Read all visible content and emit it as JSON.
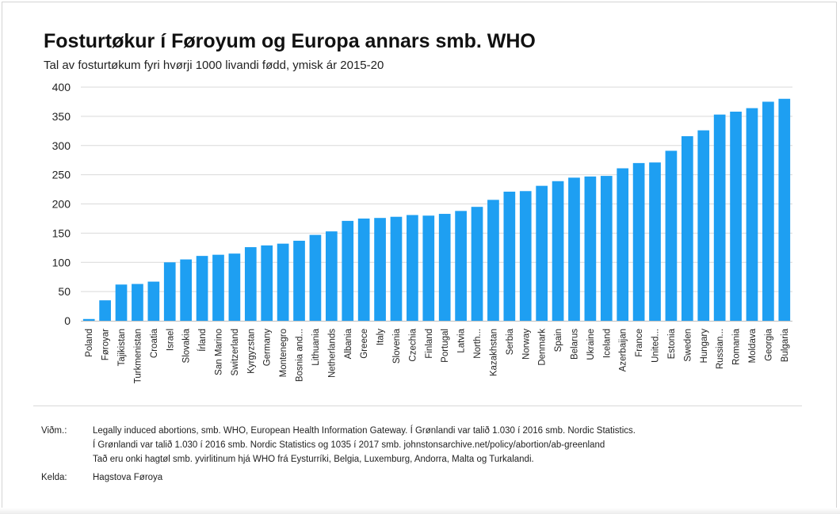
{
  "title": "Fosturtøkur í Føroyum og Europa annars smb. WHO",
  "subtitle": "Tal av fosturtøkum fyri hvørji 1000 livandi fødd, ymisk ár 2015-20",
  "colors": {
    "bar": "#1e9ff2",
    "grid": "#d9d9d9",
    "axis": "#bfbfbf",
    "text": "#222222"
  },
  "chart_data": {
    "type": "bar",
    "title": "Fosturtøkur í Føroyum og Europa annars smb. WHO",
    "subtitle": "Tal av fosturtøkum fyri hvørji 1000 livandi fødd, ymisk ár 2015-20",
    "xlabel": "",
    "ylabel": "",
    "ylim": [
      0,
      400
    ],
    "yticks": [
      0,
      50,
      100,
      150,
      200,
      250,
      300,
      350,
      400
    ],
    "grid": true,
    "legend": "none",
    "categories": [
      "Poland",
      "Føroyar",
      "Tajikistan",
      "Turkmenistan",
      "Croatia",
      "Israel",
      "Slovakia",
      "Írland",
      "San Marino",
      "Switzerland",
      "Kyrgyzstan",
      "Germany",
      "Montenegro",
      "Bosnia and...",
      "Lithuania",
      "Netherlands",
      "Albania",
      "Greece",
      "Italy",
      "Slovenia",
      "Czechia",
      "Finland",
      "Portugal",
      "Latvia",
      "North...",
      "Kazakhstan",
      "Serbia",
      "Norway",
      "Denmark",
      "Spain",
      "Belarus",
      "Ukraine",
      "Iceland",
      "Azerbaijan",
      "France",
      "United...",
      "Estonia",
      "Sweden",
      "Hungary",
      "Russian...",
      "Romania",
      "Moldava",
      "Georgia",
      "Bulgaria"
    ],
    "values": [
      3,
      35,
      62,
      63,
      67,
      100,
      105,
      111,
      113,
      115,
      126,
      129,
      132,
      137,
      147,
      153,
      171,
      175,
      176,
      178,
      181,
      180,
      183,
      188,
      195,
      207,
      221,
      222,
      231,
      239,
      245,
      247,
      248,
      261,
      270,
      271,
      291,
      316,
      326,
      353,
      358,
      364,
      375,
      380
    ]
  },
  "notes": {
    "label": "Viðm.:",
    "lines": [
      "Legally induced abortions, smb. WHO, European Health Information Gateway. Í Grønlandi var talið 1.030 í 2016 smb. Nordic Statistics.",
      "Í Grønlandi var talið 1.030 í 2016 smb. Nordic Statistics og 1035 í 2017 smb. johnstonsarchive.net/policy/abortion/ab-greenland",
      "Tað eru onki hagtøl smb. yvirlitinum hjá WHO frá Eysturríki, Belgia, Luxemburg, Andorra, Malta og Turkalandi."
    ],
    "source_label": "Kelda:",
    "source": "Hagstova Føroya"
  }
}
